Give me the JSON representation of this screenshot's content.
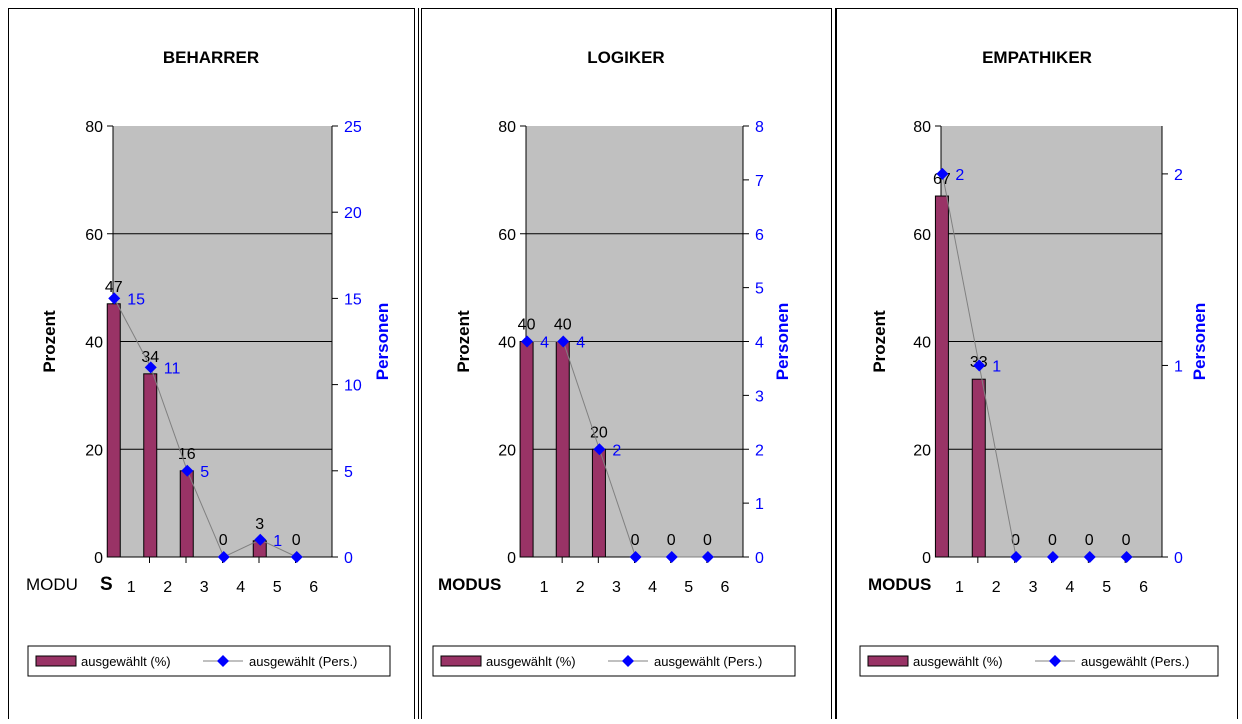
{
  "colors": {
    "plot_bg": "#c0c0c0",
    "bar": "#993366",
    "marker": "#0000ff",
    "line": "#808080",
    "axis": "#000000",
    "right_axis_text": "#0000ff"
  },
  "chart_data": [
    {
      "type": "bar",
      "title": "BEHARRER",
      "xlabel_prefix": "MODU",
      "xlabel_suffix": "S",
      "ylabel_left": "Prozent",
      "ylabel_right": "Personen",
      "categories": [
        "1",
        "2",
        "3",
        "4",
        "5",
        "6"
      ],
      "ylim_left": [
        0,
        80
      ],
      "yticks_left": [
        "0",
        "20",
        "40",
        "60",
        "80"
      ],
      "ylim_right": [
        0,
        25
      ],
      "yticks_right": [
        "0",
        "5",
        "10",
        "15",
        "20",
        "25"
      ],
      "gridlines_left": [
        20,
        40,
        60
      ],
      "series": [
        {
          "name": "ausgewählt (%)",
          "axis": "left",
          "values": [
            47,
            34,
            16,
            0,
            3,
            0
          ],
          "labels": [
            "47",
            "34",
            "16",
            "0",
            "3",
            "0"
          ]
        },
        {
          "name": "ausgewählt (Pers.)",
          "axis": "right",
          "values": [
            15,
            11,
            5,
            0,
            1,
            0
          ],
          "labels": [
            "15",
            "11",
            "5",
            "",
            "1",
            ""
          ]
        }
      ],
      "legend": [
        "ausgewählt (%)",
        "ausgewählt (Pers.)"
      ],
      "legend_placement": "bottom"
    },
    {
      "type": "bar",
      "title": "LOGIKER",
      "xlabel_prefix": "MODUS",
      "xlabel_suffix": "",
      "ylabel_left": "Prozent",
      "ylabel_right": "Personen",
      "categories": [
        "1",
        "2",
        "3",
        "4",
        "5",
        "6"
      ],
      "ylim_left": [
        0,
        80
      ],
      "yticks_left": [
        "0",
        "20",
        "40",
        "60",
        "80"
      ],
      "ylim_right": [
        0,
        8
      ],
      "yticks_right": [
        "0",
        "1",
        "2",
        "3",
        "4",
        "5",
        "6",
        "7",
        "8"
      ],
      "gridlines_left": [
        20,
        40,
        60
      ],
      "series": [
        {
          "name": "ausgewählt (%)",
          "axis": "left",
          "values": [
            40,
            40,
            20,
            0,
            0,
            0
          ],
          "labels": [
            "40",
            "40",
            "20",
            "0",
            "0",
            "0"
          ]
        },
        {
          "name": "ausgewählt (Pers.)",
          "axis": "right",
          "values": [
            4,
            4,
            2,
            0,
            0,
            0
          ],
          "labels": [
            "4",
            "4",
            "2",
            "",
            "",
            ""
          ]
        }
      ],
      "legend": [
        "ausgewählt (%)",
        "ausgewählt (Pers.)"
      ],
      "legend_placement": "bottom"
    },
    {
      "type": "bar",
      "title": "EMPATHIKER",
      "xlabel_prefix": "MODUS",
      "xlabel_suffix": "",
      "ylabel_left": "Prozent",
      "ylabel_right": "Personen",
      "categories": [
        "1",
        "2",
        "3",
        "4",
        "5",
        "6"
      ],
      "ylim_left": [
        0,
        80
      ],
      "yticks_left": [
        "0",
        "20",
        "40",
        "60",
        "80"
      ],
      "ylim_right": [
        0,
        2.25
      ],
      "yticks_right": [
        "0",
        "1",
        "2"
      ],
      "gridlines_left": [
        20,
        40,
        60
      ],
      "series": [
        {
          "name": "ausgewählt (%)",
          "axis": "left",
          "values": [
            67,
            33,
            0,
            0,
            0,
            0
          ],
          "labels": [
            "67",
            "33",
            "0",
            "0",
            "0",
            "0"
          ]
        },
        {
          "name": "ausgewählt (Pers.)",
          "axis": "right",
          "values": [
            2,
            1,
            0,
            0,
            0,
            0
          ],
          "labels": [
            "2",
            "1",
            "",
            "",
            "",
            ""
          ]
        }
      ],
      "legend": [
        "ausgewählt (%)",
        "ausgewählt (Pers.)"
      ],
      "legend_placement": "bottom"
    }
  ]
}
